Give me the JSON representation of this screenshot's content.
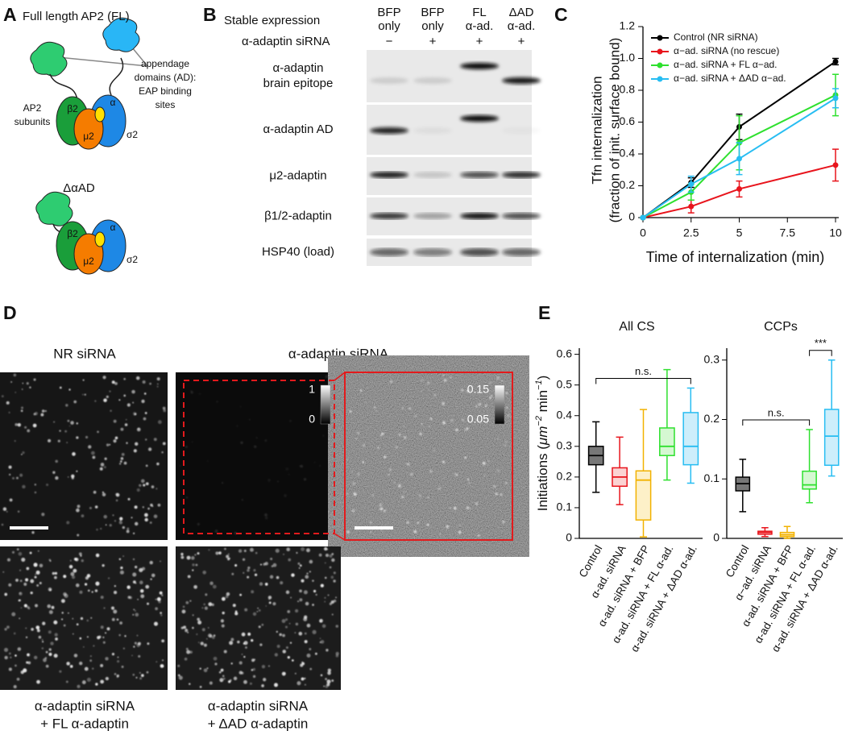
{
  "panel_a": {
    "label": "A",
    "title": "Full length AP2 (FL)",
    "callout": [
      "appendage",
      "domains (AD):",
      "EAP binding",
      "sites"
    ],
    "subunits_label": [
      "AP2",
      "subunits"
    ],
    "subunits": [
      "β2",
      "μ2",
      "α",
      "σ2"
    ],
    "mutant_title": "ΔαAD"
  },
  "panel_b": {
    "label": "B",
    "expression_header": "Stable expression",
    "sirna_header": "α-adaptin siRNA",
    "columns": [
      {
        "expression": [
          "BFP",
          "only"
        ],
        "sirna": "−"
      },
      {
        "expression": [
          "BFP",
          "only"
        ],
        "sirna": "+"
      },
      {
        "expression": [
          "FL",
          "α-ad."
        ],
        "sirna": "+"
      },
      {
        "expression": [
          "ΔAD",
          "α-ad."
        ],
        "sirna": "+"
      }
    ],
    "blots": [
      [
        "α-adaptin",
        "brain epitope"
      ],
      [
        "α-adaptin AD"
      ],
      [
        "μ2-adaptin"
      ],
      [
        "β1/2-adaptin"
      ],
      [
        "HSP40 (load)"
      ]
    ]
  },
  "panel_d": {
    "label": "D",
    "titles": [
      "NR siRNA",
      "α-adaptin siRNA"
    ],
    "colorbars": [
      {
        "max": 1,
        "min": 0
      },
      {
        "max": 0.15,
        "min": 0.05
      }
    ],
    "captions": [
      [
        "α-adaptin siRNA",
        "+ FL α-adaptin"
      ],
      [
        "α-adaptin siRNA",
        "+ ΔAD α-adaptin"
      ]
    ]
  },
  "chart_data": [
    {
      "type": "line",
      "panel": "C",
      "xlabel": "Time of internalization (min)",
      "ylabel": [
        "Tfn internalization",
        "(fraction of init. surface bound)"
      ],
      "x": [
        0,
        2.5,
        5,
        10
      ],
      "xlim": [
        0,
        10
      ],
      "xticks": [
        0,
        2.5,
        5,
        7.5,
        10
      ],
      "ylim": [
        0,
        1.2
      ],
      "yticks": [
        0,
        0.2,
        0.4,
        0.6,
        0.8,
        {
          "value": 1,
          "label": "1.0"
        },
        1.2
      ],
      "legend": "upper left",
      "series": [
        {
          "name": "Control (NR siRNA)",
          "color": "#000000",
          "values": [
            0,
            0.22,
            0.57,
            0.98
          ],
          "errors": [
            0,
            0.03,
            0.08,
            0.02
          ]
        },
        {
          "name": "α−ad. siRNA (no rescue)",
          "color": "#e8141c",
          "values": [
            0,
            0.07,
            0.18,
            0.33
          ],
          "errors": [
            0,
            0.04,
            0.05,
            0.1
          ]
        },
        {
          "name": "α−ad. siRNA + FL α−ad.",
          "color": "#2ee02e",
          "values": [
            0,
            0.16,
            0.47,
            0.77
          ],
          "errors": [
            0,
            0.05,
            0.17,
            0.13
          ]
        },
        {
          "name": "α−ad. siRNA + ΔAD α−ad.",
          "color": "#27bdf2",
          "values": [
            0,
            0.21,
            0.37,
            0.75
          ],
          "errors": [
            0,
            0.05,
            0.1,
            0.06
          ]
        }
      ]
    },
    {
      "type": "box",
      "panel": "E",
      "title": "All CS",
      "ylabel": [
        "Initiations (",
        "μm",
        "−2",
        " min",
        "−1",
        ")"
      ],
      "categories": [
        "Control",
        "α-ad. siRNA",
        "α-ad. siRNA + BFP",
        "α-ad. siRNA + FL α-ad.",
        "α-ad. siRNA + ΔAD α-ad."
      ],
      "colors": [
        "#000000",
        "#e8141c",
        "#f2b200",
        "#2ee02e",
        "#27bdf2"
      ],
      "fills": [
        "#777777",
        "#fbd3d3",
        "#fdf0c8",
        "#d5f8d2",
        "#cdeefb"
      ],
      "boxes": [
        {
          "whisker_low": 0.15,
          "q1": 0.24,
          "median": 0.27,
          "q3": 0.3,
          "whisker_high": 0.38
        },
        {
          "whisker_low": 0.11,
          "q1": 0.17,
          "median": 0.2,
          "q3": 0.23,
          "whisker_high": 0.33
        },
        {
          "whisker_low": 0.005,
          "q1": 0.06,
          "median": 0.19,
          "q3": 0.22,
          "whisker_high": 0.42
        },
        {
          "whisker_low": 0.19,
          "q1": 0.27,
          "median": 0.3,
          "q3": 0.36,
          "whisker_high": 0.55
        },
        {
          "whisker_low": 0.18,
          "q1": 0.24,
          "median": 0.3,
          "q3": 0.41,
          "whisker_high": 0.49
        }
      ],
      "ylim": [
        0,
        0.62
      ],
      "yticks": [
        0,
        0.1,
        0.2,
        0.3,
        0.4,
        0.5,
        0.6
      ],
      "annotations": [
        {
          "text": "n.s.",
          "between": [
            "Control",
            "α-ad. siRNA + ΔAD α-ad."
          ]
        }
      ]
    },
    {
      "type": "box",
      "title": "CCPs",
      "categories": [
        "Control",
        "α−ad. siRNA",
        "α-ad. siRNA + BFP",
        "α-ad. siRNA + FL α-ad.",
        "α-ad. siRNA + ΔAD α-ad."
      ],
      "colors": [
        "#000000",
        "#e8141c",
        "#f2b200",
        "#2ee02e",
        "#27bdf2"
      ],
      "fills": [
        "#777777",
        "#fbd3d3",
        "#fdf0c8",
        "#d5f8d2",
        "#cdeefb"
      ],
      "boxes": [
        {
          "whisker_low": 0.045,
          "q1": 0.08,
          "median": 0.092,
          "q3": 0.103,
          "whisker_high": 0.133
        },
        {
          "whisker_low": 0.003,
          "q1": 0.007,
          "median": 0.01,
          "q3": 0.012,
          "whisker_high": 0.018
        },
        {
          "whisker_low": 0,
          "q1": 0.003,
          "median": 0.006,
          "q3": 0.01,
          "whisker_high": 0.02
        },
        {
          "whisker_low": 0.06,
          "q1": 0.083,
          "median": 0.09,
          "q3": 0.113,
          "whisker_high": 0.183
        },
        {
          "whisker_low": 0.105,
          "q1": 0.123,
          "median": 0.172,
          "q3": 0.217,
          "whisker_high": 0.3
        }
      ],
      "ylim": [
        0,
        0.32
      ],
      "yticks": [
        0,
        0.1,
        0.2,
        0.3
      ],
      "annotations": [
        {
          "text": "n.s.",
          "between": [
            "Control",
            "α-ad. siRNA + FL α-ad."
          ]
        },
        {
          "text": "***",
          "between": [
            "α-ad. siRNA + FL α-ad.",
            "α-ad. siRNA + ΔAD α-ad."
          ]
        }
      ]
    }
  ]
}
